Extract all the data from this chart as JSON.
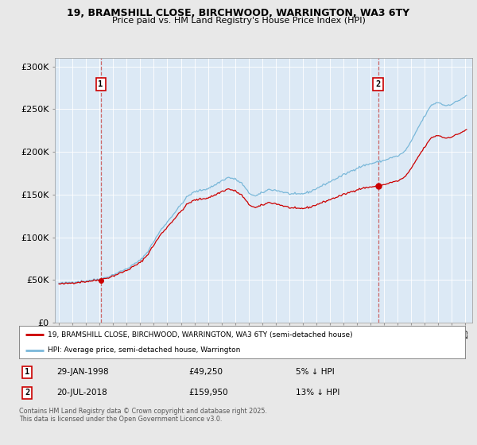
{
  "title1": "19, BRAMSHILL CLOSE, BIRCHWOOD, WARRINGTON, WA3 6TY",
  "title2": "Price paid vs. HM Land Registry's House Price Index (HPI)",
  "y_min": 0,
  "y_max": 310000,
  "yticks": [
    0,
    50000,
    100000,
    150000,
    200000,
    250000,
    300000
  ],
  "ytick_labels": [
    "£0",
    "£50K",
    "£100K",
    "£150K",
    "£200K",
    "£250K",
    "£300K"
  ],
  "sale1_date": 1998.08,
  "sale1_price": 49250,
  "sale1_label": "1",
  "sale2_date": 2018.55,
  "sale2_price": 159950,
  "sale2_label": "2",
  "hpi_color": "#7ab8d9",
  "price_color": "#cc0000",
  "dashed_color": "#cc6666",
  "plot_bg_color": "#dce9f5",
  "background_color": "#e8e8e8",
  "grid_color": "#ffffff",
  "legend1_label": "19, BRAMSHILL CLOSE, BIRCHWOOD, WARRINGTON, WA3 6TY (semi-detached house)",
  "legend2_label": "HPI: Average price, semi-detached house, Warrington",
  "annotation1_date_label": "29-JAN-1998",
  "annotation1_price_label": "£49,250",
  "annotation1_pct_label": "5% ↓ HPI",
  "annotation2_date_label": "20-JUL-2018",
  "annotation2_price_label": "£159,950",
  "annotation2_pct_label": "13% ↓ HPI",
  "footnote": "Contains HM Land Registry data © Crown copyright and database right 2025.\nThis data is licensed under the Open Government Licence v3.0."
}
